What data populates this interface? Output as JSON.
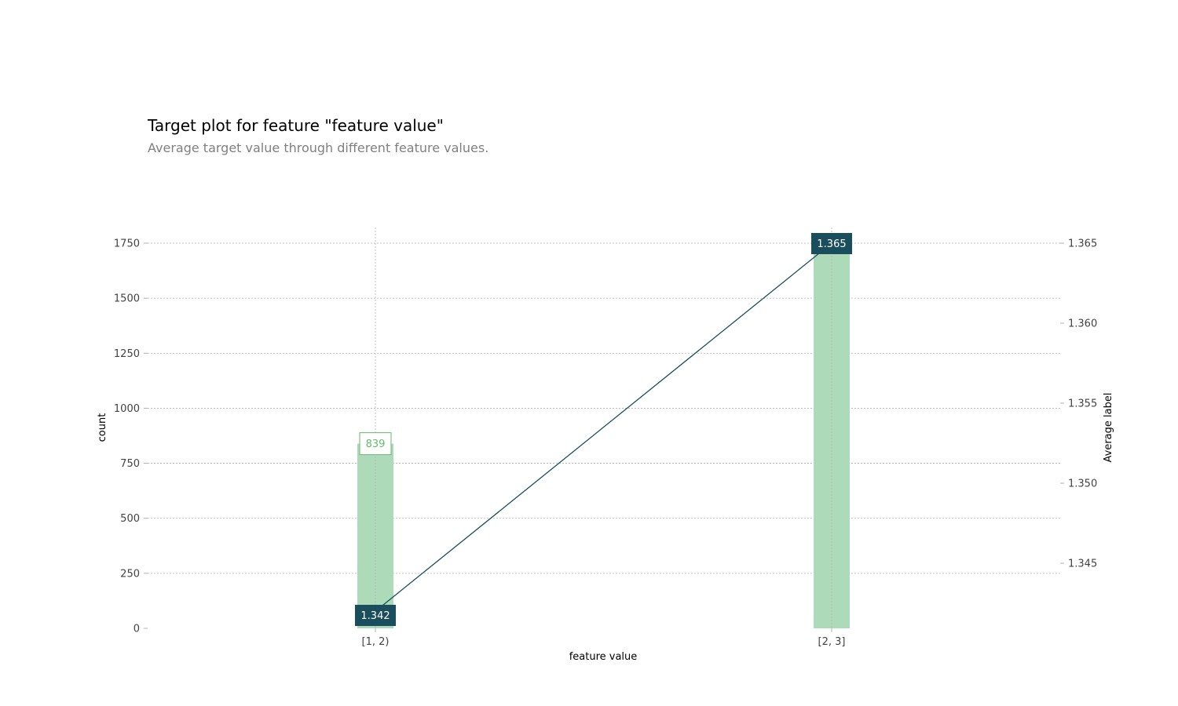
{
  "title": "Target plot for feature \"feature value\"",
  "subtitle": "Average target value through different feature values.",
  "colors": {
    "bar": "#addbb9",
    "bar_label": "#66bb6a",
    "line": "#1a4e5d",
    "grid": "#b0b0b0",
    "tick_text": "#424242"
  },
  "chart_data": {
    "type": "bar",
    "categories": [
      "[1, 2)",
      "[2, 3]"
    ],
    "xlabel": "feature value",
    "ylabel": "count",
    "ylabel_right": "Average label",
    "ylim": [
      0,
      1825
    ],
    "ylim_right": [
      1.3405,
      1.3663
    ],
    "yticks": [
      0,
      250,
      500,
      750,
      1000,
      1250,
      1500,
      1750
    ],
    "yticks_right": [
      "1.345",
      "1.350",
      "1.355",
      "1.360",
      "1.365"
    ],
    "grid": true,
    "series": [
      {
        "name": "count",
        "type": "bar",
        "values": [
          839,
          1785
        ],
        "labels": [
          "839",
          ""
        ]
      },
      {
        "name": "Average label",
        "type": "line",
        "axis": "right",
        "values": [
          1.342,
          1.365
        ],
        "labels": [
          "1.342",
          "1.365"
        ]
      }
    ]
  }
}
